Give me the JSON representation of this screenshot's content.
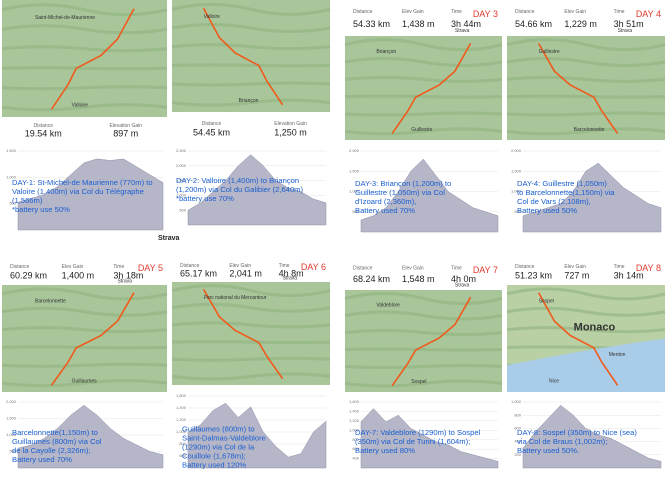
{
  "brand": "Strava",
  "panels": [
    {
      "stats": [
        {
          "label": "Distance",
          "value": "19.54 km"
        },
        {
          "label": "Elevation Gain",
          "value": "897 m"
        }
      ],
      "places": [
        "Saint-Michel-de-Maurienne",
        "Valloire"
      ],
      "caption": [
        "DAY-1: St-Michel-de Maurienne (770m) to",
        "Valoire (1,400m) via Col du Télégraphe",
        "(1,566m)",
        "*battery use 50%"
      ],
      "yticks": [
        "1,500",
        "1,000",
        "500"
      ]
    },
    {
      "stats": [
        {
          "label": "Distance",
          "value": "54.45 km"
        },
        {
          "label": "Elevation Gain",
          "value": "1,250 m"
        }
      ],
      "places": [
        "Valloire",
        "Briançon"
      ],
      "caption": [
        "DAY-2: Valloire (1,400m) to Briançon",
        "(1,200m) via Col du Galibier (2,640m)",
        "*battery use 70%"
      ],
      "yticks": [
        "2,500",
        "2,000",
        "1,500",
        "1,000",
        "500"
      ]
    },
    {
      "stats": [
        {
          "label": "Distance",
          "value": "54.33 km"
        },
        {
          "label": "Elev Gain",
          "value": "1,438 m"
        },
        {
          "label": "Time",
          "value": "3h 44m"
        }
      ],
      "day": "DAY 3",
      "places": [
        "Briançon",
        "Guillestre"
      ],
      "caption": [
        "DAY-3: Briançon (1,200m) to",
        "Guillestre (1,050m) via Col",
        "d'Izoard (2,360m),",
        "Battery used 70%"
      ],
      "yticks": [
        "2,000",
        "1,500",
        "1,000",
        "500"
      ]
    },
    {
      "stats": [
        {
          "label": "Distance",
          "value": "54.66 km"
        },
        {
          "label": "Elev Gain",
          "value": "1,229 m"
        },
        {
          "label": "Time",
          "value": "3h 51m"
        }
      ],
      "day": "DAY 4",
      "places": [
        "Guillestre",
        "Barcelonnette"
      ],
      "caption": [
        "DAY-4: Guillestre (1,050m)",
        "to Barcelonnette(1,150m) via",
        "Col de Vars (2,108m),",
        "Battery used 50%"
      ],
      "yticks": [
        "2,000",
        "1,500",
        "1,000",
        "500"
      ]
    },
    {
      "stats": [
        {
          "label": "Distance",
          "value": "60.29 km"
        },
        {
          "label": "Elev Gain",
          "value": "1,400 m"
        },
        {
          "label": "Time",
          "value": "3h 18m"
        }
      ],
      "day": "DAY 5",
      "places": [
        "Barcelonnette",
        "Guillaumes"
      ],
      "caption": [
        "Barcelonnette(1,150m) to",
        "Guillaumes (800m) via Col",
        "de la Cayolle (2,326m);",
        "Battery used 70%"
      ],
      "yticks": [
        "2,000",
        "1,500",
        "1,000",
        "500"
      ]
    },
    {
      "stats": [
        {
          "label": "Distance",
          "value": "65.17 km"
        },
        {
          "label": "Elev Gain",
          "value": "2,041 m"
        },
        {
          "label": "Time",
          "value": "4h 8m"
        }
      ],
      "day": "DAY 6",
      "places": [
        "Parc national du Mercantour"
      ],
      "caption": [
        "Guillaumes (800m) to",
        "Saint-Dalmas-Valdeblore",
        "(1290m) via Col de la",
        "Couillole (1,678m);",
        "Battery used 120%"
      ],
      "yticks": [
        "1,600",
        "1,400",
        "1,200",
        "1,000",
        "800",
        "600"
      ]
    },
    {
      "stats": [
        {
          "label": "Distance",
          "value": "68.24 km"
        },
        {
          "label": "Elev Gain",
          "value": "1,548 m"
        },
        {
          "label": "Time",
          "value": "4h 0m"
        }
      ],
      "day": "DAY 7",
      "places": [
        "Valdeblore",
        "Sospel"
      ],
      "caption": [
        "DAY-7: Valdeblore (1290m) to Sospel",
        "(350m) via Col de Turini (1,604m);",
        "Battery used 80%"
      ],
      "yticks": [
        "1,600",
        "1,400",
        "1,200",
        "1,000",
        "800",
        "600",
        "400"
      ]
    },
    {
      "stats": [
        {
          "label": "Distance",
          "value": "51.23 km"
        },
        {
          "label": "Elev Gain",
          "value": "727 m"
        },
        {
          "label": "Time",
          "value": "3h 14m"
        }
      ],
      "day": "DAY 8",
      "places": [
        "Sospel",
        "Monaco",
        "Menton",
        "Nice"
      ],
      "caption": [
        "DAY-8: Sospel (350m) to Nice (sea)",
        "via Col de Braus (1,002m);",
        "Battery used 50%."
      ],
      "yticks": [
        "1,000",
        "800",
        "600",
        "400",
        "200"
      ]
    }
  ]
}
